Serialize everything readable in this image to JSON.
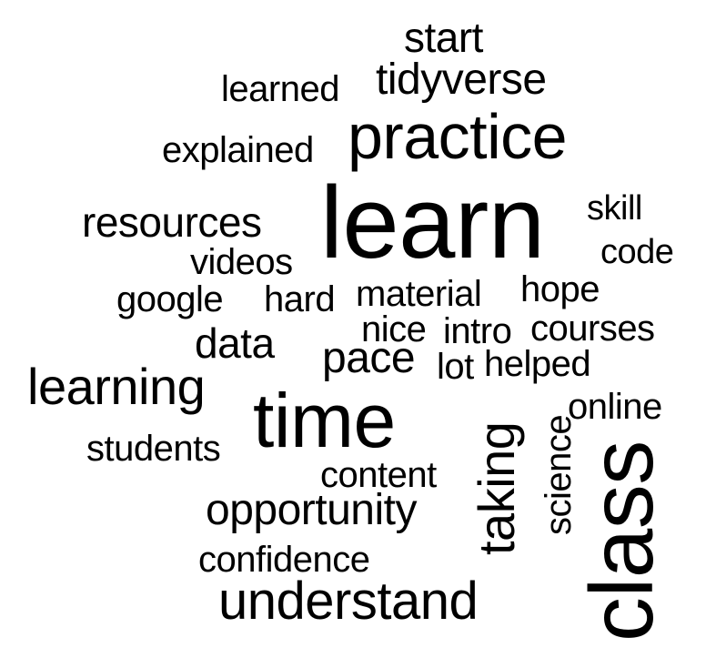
{
  "word_cloud": {
    "text_color": "#000000",
    "background_color": "#ffffff",
    "words": {
      "start": "start",
      "learned": "learned",
      "tidyverse": "tidyverse",
      "explained": "explained",
      "practice": "practice",
      "resources": "resources",
      "learn": "learn",
      "skill": "skill",
      "code": "code",
      "videos": "videos",
      "google": "google",
      "hard": "hard",
      "material": "material",
      "hope": "hope",
      "nice": "nice",
      "intro": "intro",
      "courses": "courses",
      "data": "data",
      "pace": "pace",
      "lot": "lot",
      "helped": "helped",
      "learning": "learning",
      "time": "time",
      "taking": "taking",
      "science": "science",
      "online": "online",
      "students": "students",
      "content": "content",
      "class": "class",
      "opportunity": "opportunity",
      "confidence": "confidence",
      "understand": "understand"
    }
  }
}
